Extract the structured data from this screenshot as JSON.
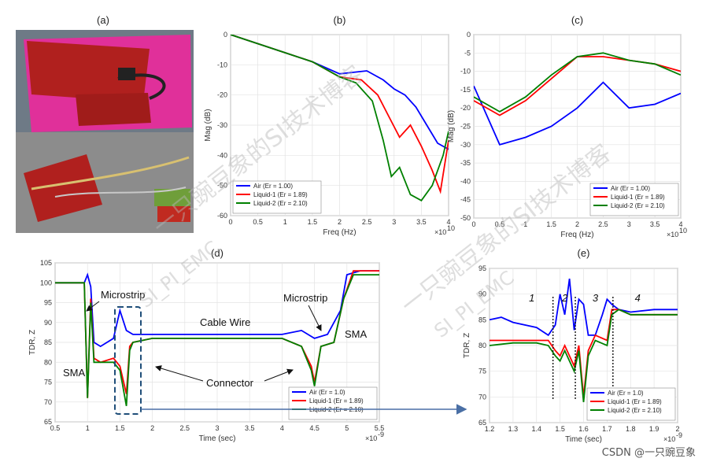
{
  "credit": "CSDN @一只豌豆象",
  "watermarks": [
    "一只豌豆象的SI技术博客",
    "SI_PI_EMC",
    "一只豌豆象的SI技术博客",
    "SI_PI_EMC"
  ],
  "photo": {
    "label": "(a)",
    "colors": {
      "tray": "#e0309a",
      "board": "#b0201e",
      "bench": "#7a7a7a"
    }
  },
  "colors": {
    "air": "#0000ff",
    "liquid1": "#ff0000",
    "liquid2": "#008000",
    "connector_box": "#1f4e79",
    "arrow": "#1f4e79"
  },
  "chart_data": [
    {
      "id": "b",
      "label": "(b)",
      "type": "line",
      "xlabel": "Freq (Hz)",
      "ylabel": "Mag (dB)",
      "xexp": "×10",
      "xexp_sup": "10",
      "xlim": [
        0,
        4
      ],
      "ylim": [
        -60,
        0
      ],
      "xticks": [
        "0",
        "0.5",
        "1",
        "1.5",
        "2",
        "2.5",
        "3",
        "3.5",
        "4"
      ],
      "yticks": [
        "0",
        "-10",
        "-20",
        "-30",
        "-40",
        "-50",
        "-60"
      ],
      "grid": true,
      "legend_position": "bottom-left",
      "series": [
        {
          "name": "Air (Er = 1.00)",
          "key": "air",
          "x": [
            0,
            0.5,
            1,
            1.5,
            2,
            2.5,
            2.8,
            3.0,
            3.2,
            3.4,
            3.6,
            3.8,
            4.0
          ],
          "y": [
            0,
            -3,
            -6,
            -9,
            -13,
            -12,
            -15,
            -18,
            -20,
            -24,
            -30,
            -36,
            -38
          ]
        },
        {
          "name": "Liquid-1 (Er = 1.89)",
          "key": "liquid1",
          "x": [
            0,
            0.5,
            1,
            1.5,
            2,
            2.4,
            2.7,
            2.9,
            3.1,
            3.3,
            3.5,
            3.7,
            3.85,
            4.0
          ],
          "y": [
            0,
            -3,
            -6,
            -9,
            -14,
            -15,
            -20,
            -27,
            -34,
            -30,
            -37,
            -45,
            -52,
            -35
          ]
        },
        {
          "name": "Liquid-2 (Er = 2.10)",
          "key": "liquid2",
          "x": [
            0,
            0.5,
            1,
            1.5,
            2,
            2.3,
            2.6,
            2.8,
            2.95,
            3.1,
            3.3,
            3.5,
            3.7,
            3.9,
            4.0
          ],
          "y": [
            0,
            -3,
            -6,
            -9,
            -14,
            -16,
            -22,
            -35,
            -47,
            -44,
            -53,
            -55,
            -50,
            -40,
            -32
          ]
        }
      ]
    },
    {
      "id": "c",
      "label": "(c)",
      "type": "line",
      "xlabel": "Freq (Hz)",
      "ylabel": "Mag (dB)",
      "xexp": "×10",
      "xexp_sup": "10",
      "xlim": [
        0,
        4
      ],
      "ylim": [
        -50,
        0
      ],
      "xticks": [
        "0",
        "0.5",
        "1",
        "1.5",
        "2",
        "2.5",
        "3",
        "3.5",
        "4"
      ],
      "yticks": [
        "0",
        "-5",
        "-10",
        "-15",
        "-20",
        "-25",
        "-30",
        "-35",
        "-40",
        "-45",
        "-50"
      ],
      "grid": true,
      "legend_position": "bottom-right",
      "series": [
        {
          "name": "Air (Er = 1.00)",
          "key": "air",
          "x": [
            0,
            0.5,
            1,
            1.5,
            2,
            2.5,
            3,
            3.5,
            4
          ],
          "y": [
            -14,
            -30,
            -28,
            -25,
            -20,
            -13,
            -20,
            -19,
            -16
          ]
        },
        {
          "name": "Liquid-1 (Er = 1.89)",
          "key": "liquid1",
          "x": [
            0,
            0.5,
            1,
            1.5,
            2,
            2.5,
            3,
            3.5,
            4
          ],
          "y": [
            -18,
            -22,
            -18,
            -12,
            -6,
            -6,
            -7,
            -8,
            -10
          ]
        },
        {
          "name": "Liquid-2 (Er = 2.10)",
          "key": "liquid2",
          "x": [
            0,
            0.5,
            1,
            1.5,
            2,
            2.5,
            3,
            3.5,
            4
          ],
          "y": [
            -17,
            -21,
            -17,
            -11,
            -6,
            -5,
            -7,
            -8,
            -11
          ]
        }
      ]
    },
    {
      "id": "d",
      "label": "(d)",
      "type": "line",
      "xlabel": "Time (sec)",
      "ylabel": "TDR, Z",
      "xexp": "×10",
      "xexp_sup": "-9",
      "xlim": [
        0.5,
        5.5
      ],
      "ylim": [
        65,
        105
      ],
      "xticks": [
        "0.5",
        "1",
        "1.5",
        "2",
        "2.5",
        "3",
        "3.5",
        "4",
        "4.5",
        "5",
        "5.5"
      ],
      "yticks": [
        "105",
        "100",
        "95",
        "90",
        "85",
        "80",
        "75",
        "70",
        "65"
      ],
      "grid": true,
      "legend_position": "bottom-right",
      "annotations": [
        "Microstrip",
        "Microstrip",
        "Cable Wire",
        "SMA",
        "SMA",
        "Connector"
      ],
      "series": [
        {
          "name": "Air (Er = 1.0)",
          "key": "air",
          "x": [
            0.5,
            0.95,
            1.0,
            1.05,
            1.1,
            1.2,
            1.4,
            1.5,
            1.6,
            1.7,
            2.0,
            3.0,
            4.0,
            4.3,
            4.5,
            4.7,
            4.9,
            5.0,
            5.2,
            5.5
          ],
          "y": [
            100,
            100,
            102,
            99,
            85,
            84,
            86,
            93,
            88,
            87,
            87,
            87,
            87,
            88,
            86,
            87,
            93,
            102,
            103,
            103
          ]
        },
        {
          "name": "Liquid-1 (Er = 1.89)",
          "key": "liquid1",
          "x": [
            0.5,
            0.95,
            1.0,
            1.05,
            1.1,
            1.2,
            1.4,
            1.5,
            1.6,
            1.65,
            1.7,
            2.0,
            3.0,
            4.0,
            4.3,
            4.45,
            4.5,
            4.6,
            4.8,
            4.95,
            5.1,
            5.5
          ],
          "y": [
            100,
            100,
            71,
            96,
            81,
            80,
            81,
            79,
            72,
            84,
            85,
            86,
            86,
            86,
            84,
            79,
            75,
            84,
            85,
            96,
            103,
            103
          ]
        },
        {
          "name": "Liquid-2 (Er = 2.10)",
          "key": "liquid2",
          "x": [
            0.5,
            0.95,
            1.0,
            1.05,
            1.1,
            1.2,
            1.4,
            1.5,
            1.6,
            1.65,
            1.7,
            2.0,
            3.0,
            4.0,
            4.3,
            4.45,
            4.5,
            4.6,
            4.8,
            4.95,
            5.1,
            5.5
          ],
          "y": [
            100,
            100,
            71,
            95,
            80,
            80,
            80,
            78,
            69,
            83,
            85,
            86,
            86,
            86,
            84,
            78,
            74,
            84,
            85,
            96,
            102,
            102
          ]
        }
      ]
    },
    {
      "id": "e",
      "label": "(e)",
      "type": "line",
      "xlabel": "Time (sec)",
      "ylabel": "TDR, Z",
      "xexp": "×10",
      "xexp_sup": "-9",
      "xlim": [
        1.2,
        2.0
      ],
      "ylim": [
        65,
        95
      ],
      "xticks": [
        "1.2",
        "1.3",
        "1.4",
        "1.5",
        "1.6",
        "1.7",
        "1.8",
        "1.9",
        "2"
      ],
      "yticks": [
        "95",
        "90",
        "85",
        "80",
        "75",
        "70",
        "65"
      ],
      "grid": true,
      "legend_position": "bottom-right",
      "segments": [
        "1",
        "2",
        "3",
        "4"
      ],
      "segment_bounds": [
        1.47,
        1.565,
        1.725
      ],
      "series": [
        {
          "name": "Air (Er = 1.0)",
          "key": "air",
          "x": [
            1.2,
            1.25,
            1.3,
            1.4,
            1.45,
            1.48,
            1.5,
            1.52,
            1.54,
            1.56,
            1.58,
            1.6,
            1.62,
            1.65,
            1.68,
            1.7,
            1.72,
            1.75,
            1.8,
            1.9,
            2.0
          ],
          "y": [
            85,
            85.5,
            84.5,
            83.5,
            82,
            84,
            90,
            86,
            93,
            83,
            89,
            88,
            82,
            82,
            86,
            89,
            88,
            87,
            86.5,
            87,
            87
          ]
        },
        {
          "name": "Liquid-1 (Er = 1.89)",
          "key": "liquid1",
          "x": [
            1.2,
            1.3,
            1.4,
            1.45,
            1.48,
            1.5,
            1.52,
            1.54,
            1.56,
            1.58,
            1.6,
            1.62,
            1.65,
            1.7,
            1.72,
            1.75,
            1.8,
            1.9,
            2.0
          ],
          "y": [
            81,
            81,
            81,
            81,
            79,
            78,
            80,
            78,
            76,
            80,
            70,
            79,
            82,
            81,
            87,
            87,
            86,
            86,
            86
          ]
        },
        {
          "name": "Liquid-2 (Er = 2.10)",
          "key": "liquid2",
          "x": [
            1.2,
            1.3,
            1.4,
            1.45,
            1.48,
            1.5,
            1.52,
            1.54,
            1.56,
            1.58,
            1.6,
            1.62,
            1.65,
            1.7,
            1.72,
            1.75,
            1.8,
            1.9,
            2.0
          ],
          "y": [
            80,
            80.5,
            80.5,
            80,
            78,
            77,
            79,
            77,
            75,
            79,
            69,
            78,
            81,
            80,
            86,
            87,
            86,
            86,
            86
          ]
        }
      ]
    }
  ]
}
